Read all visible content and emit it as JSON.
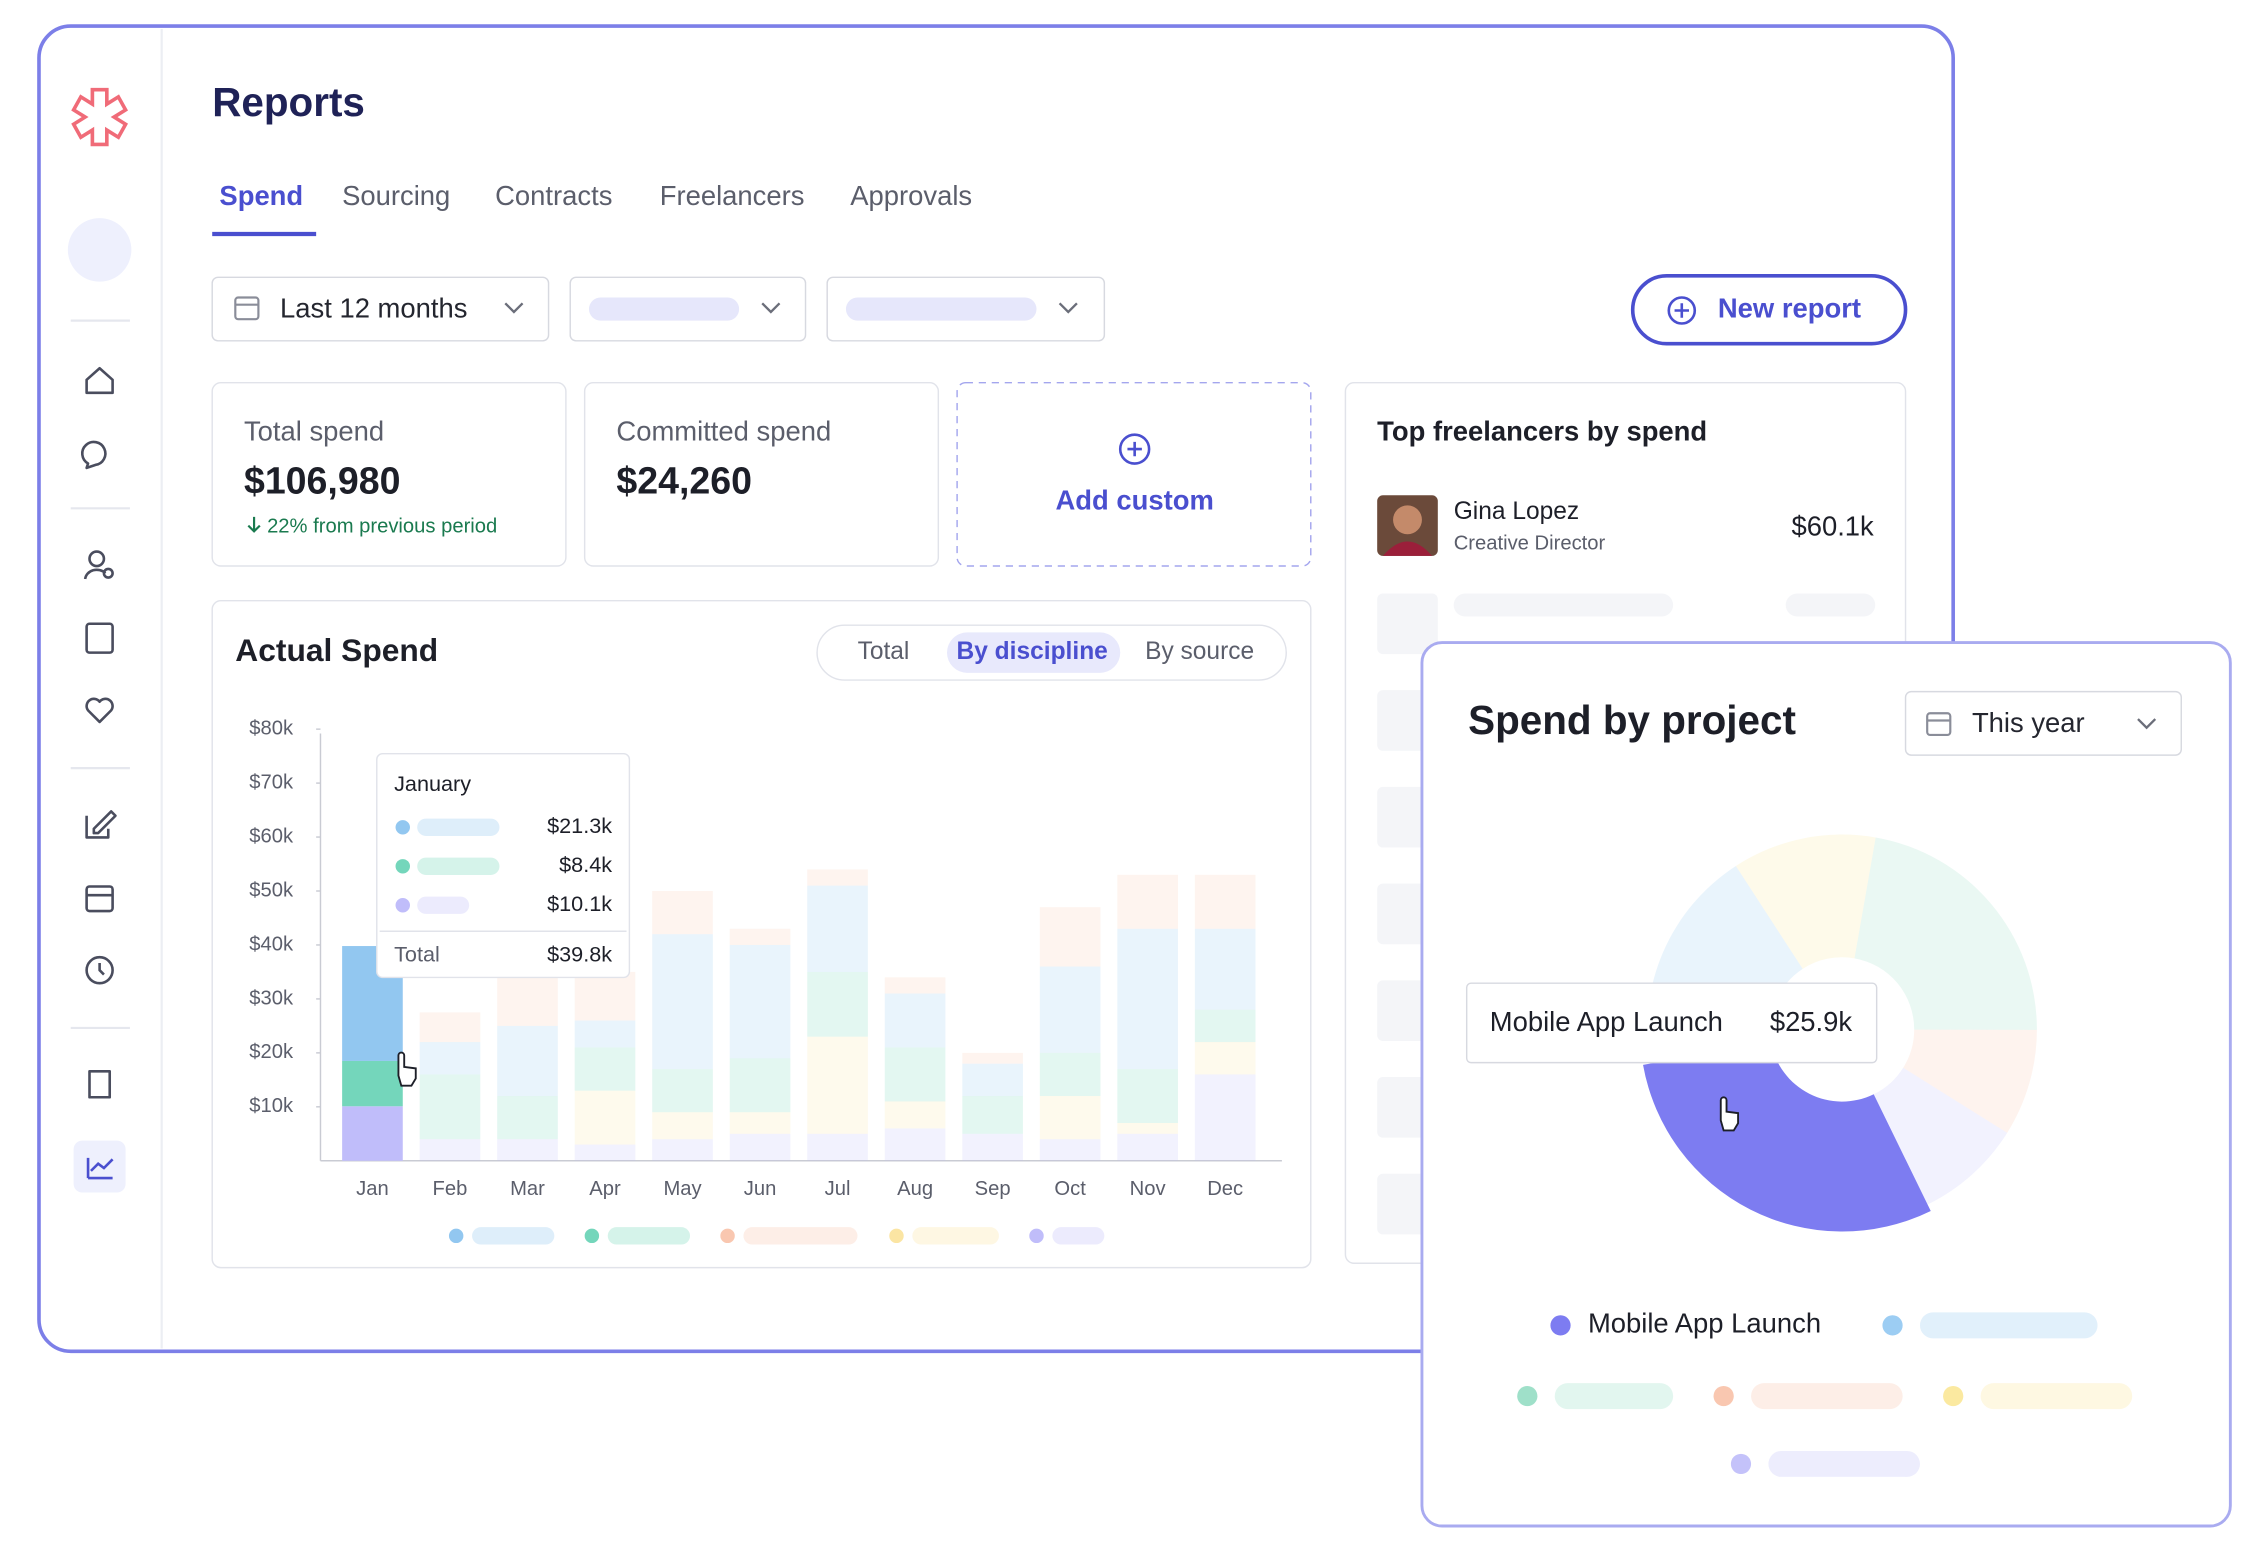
{
  "header": {
    "title": "Reports"
  },
  "tabs": [
    "Spend",
    "Sourcing",
    "Contracts",
    "Freelancers",
    "Approvals"
  ],
  "filters": {
    "date_range": "Last 12 months",
    "new_report": "New report"
  },
  "kpis": [
    {
      "label": "Total spend",
      "value": "$106,980",
      "change": "22% from previous period"
    },
    {
      "label": "Committed spend",
      "value": "$24,260"
    }
  ],
  "add_custom": "Add custom",
  "top_freelancers": {
    "title": "Top freelancers by spend",
    "items": [
      {
        "name": "Gina Lopez",
        "role": "Creative Director",
        "amount": "$60.1k"
      }
    ]
  },
  "chart_data": [
    {
      "type": "bar",
      "title": "Actual Spend",
      "views": [
        "Total",
        "By discipline",
        "By source"
      ],
      "selected_view": 1,
      "stacked": true,
      "categories": [
        "Jan",
        "Feb",
        "Mar",
        "Apr",
        "May",
        "Jun",
        "Jul",
        "Aug",
        "Sep",
        "Oct",
        "Nov",
        "Dec"
      ],
      "ylim": [
        0,
        80
      ],
      "yticks": [
        {
          "value": 10,
          "label": "$10k"
        },
        {
          "value": 20,
          "label": "$20k"
        },
        {
          "value": 30,
          "label": "$30k"
        },
        {
          "value": 40,
          "label": "$40k"
        },
        {
          "value": 50,
          "label": "$50k"
        },
        {
          "value": 60,
          "label": "$60k"
        },
        {
          "value": 70,
          "label": "$70k"
        },
        {
          "value": 80,
          "label": "$80k"
        }
      ],
      "series": [
        {
          "color": "#c0bdfa",
          "values": [
            10.1,
            4,
            4,
            3,
            4,
            5,
            5,
            6,
            5,
            4,
            5,
            16
          ],
          "value_labels": [
            "$10.1k",
            null,
            null,
            null,
            null,
            null,
            null,
            null,
            null,
            null,
            null,
            null
          ]
        },
        {
          "color": "#fbe5a3",
          "values": [
            null,
            0,
            0,
            10,
            5,
            4,
            18,
            5,
            0,
            8,
            2,
            6
          ]
        },
        {
          "color": "#74d6bb",
          "values": [
            8.4,
            12,
            8,
            8,
            8,
            10,
            12,
            10,
            7,
            8,
            10,
            6
          ],
          "value_labels": [
            "$8.4k",
            null,
            null,
            null,
            null,
            null,
            null,
            null,
            null,
            null,
            null,
            null
          ]
        },
        {
          "color": "#92c7f0",
          "values": [
            21.3,
            6,
            13,
            5,
            25,
            21,
            16,
            10,
            6,
            16,
            26,
            15
          ],
          "value_labels": [
            "$21.3k",
            null,
            null,
            null,
            null,
            null,
            null,
            null,
            null,
            null,
            null,
            null
          ]
        },
        {
          "color": "#f9c7b0",
          "values": [
            null,
            5.5,
            10,
            9,
            8,
            3,
            3,
            3,
            2,
            11,
            10,
            10
          ]
        }
      ],
      "tooltip": {
        "title": "January",
        "total_label": "Total",
        "total": "$39.8k"
      }
    },
    {
      "type": "pie",
      "title": "Spend by project",
      "date_range": "This year",
      "labels": [
        null,
        null,
        null,
        null,
        "Mobile App Launch",
        null
      ],
      "values": [
        10.5,
        19.6,
        7.8,
        7.8,
        25.9,
        16.4
      ],
      "value_labels": [
        null,
        null,
        null,
        null,
        "$25.9k",
        null
      ],
      "colors": [
        "#fbe9a0",
        "#9fe0c9",
        "#f9c7b0",
        "#c4c2fa",
        "#7d7cf1",
        "#9ccdf3"
      ]
    }
  ]
}
